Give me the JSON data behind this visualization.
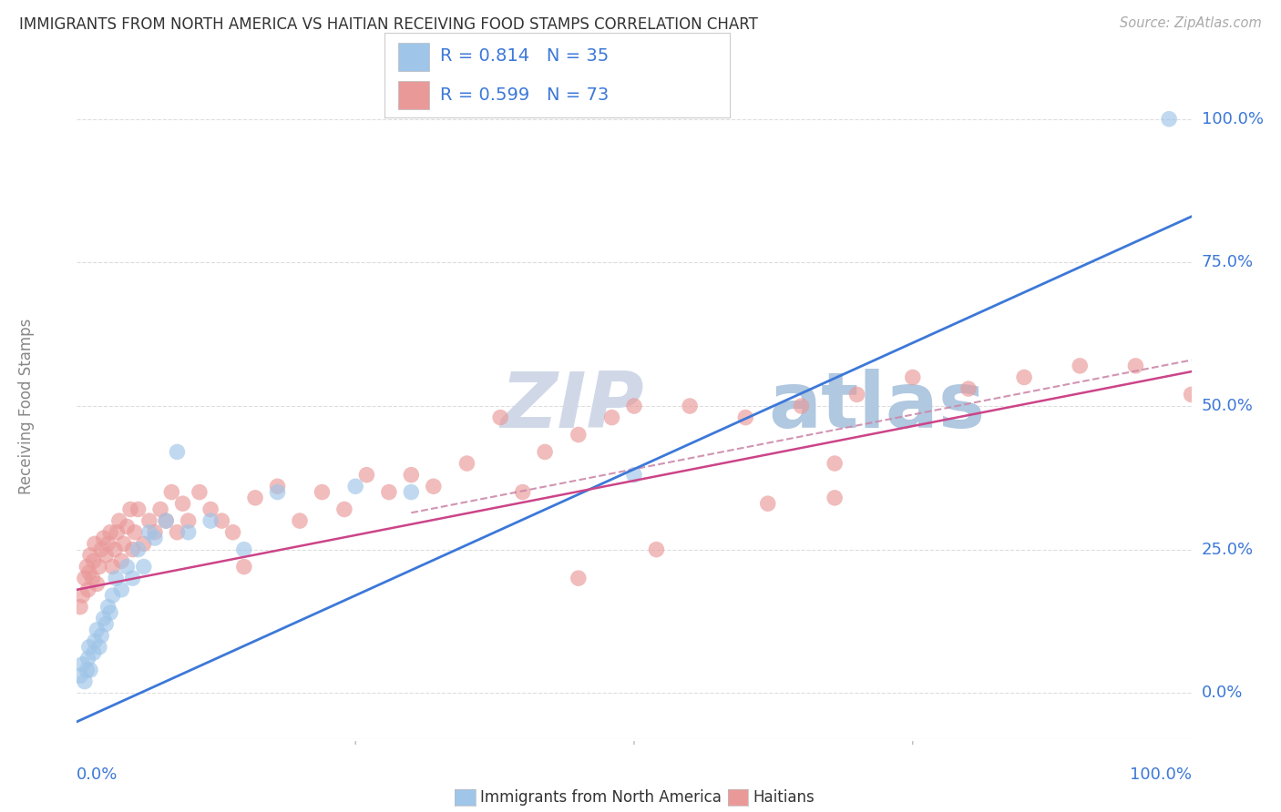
{
  "title": "IMMIGRANTS FROM NORTH AMERICA VS HAITIAN RECEIVING FOOD STAMPS CORRELATION CHART",
  "source": "Source: ZipAtlas.com",
  "ylabel": "Receiving Food Stamps",
  "blue_color": "#9FC5E8",
  "pink_color": "#EA9999",
  "blue_line_color": "#3C78D8",
  "pink_line_color": "#CC4488",
  "pink_dashed_color": "#CC88AA",
  "legend_text_color": "#3C78D8",
  "title_color": "#333333",
  "watermark_color_zip": "#C8D4E8",
  "watermark_color_atlas": "#A0C0E0",
  "grid_color": "#DDDDDD",
  "axis_label_color": "#3C78D8",
  "ylabel_color": "#888888",
  "R_blue": 0.814,
  "N_blue": 35,
  "R_pink": 0.599,
  "N_pink": 73,
  "blue_intercept": -5.0,
  "blue_slope": 0.88,
  "pink_intercept": 18.0,
  "pink_slope": 0.38,
  "pink_dashed_intercept": 20.0,
  "pink_dashed_slope": 0.38,
  "blue_scatter_x": [
    0.3,
    0.5,
    0.7,
    0.9,
    1.0,
    1.1,
    1.2,
    1.5,
    1.6,
    1.8,
    2.0,
    2.2,
    2.4,
    2.6,
    2.8,
    3.0,
    3.2,
    3.5,
    4.0,
    4.5,
    5.0,
    5.5,
    6.0,
    6.5,
    7.0,
    8.0,
    9.0,
    10.0,
    12.0,
    15.0,
    18.0,
    25.0,
    30.0,
    50.0,
    98.0
  ],
  "blue_scatter_y": [
    3,
    5,
    2,
    4,
    6,
    8,
    4,
    7,
    9,
    11,
    8,
    10,
    13,
    12,
    15,
    14,
    17,
    20,
    18,
    22,
    20,
    25,
    22,
    28,
    27,
    30,
    42,
    28,
    30,
    25,
    35,
    36,
    35,
    38,
    100
  ],
  "pink_scatter_x": [
    0.3,
    0.5,
    0.7,
    0.9,
    1.0,
    1.1,
    1.2,
    1.4,
    1.5,
    1.6,
    1.8,
    2.0,
    2.2,
    2.4,
    2.6,
    2.8,
    3.0,
    3.2,
    3.4,
    3.6,
    3.8,
    4.0,
    4.2,
    4.5,
    4.8,
    5.0,
    5.2,
    5.5,
    6.0,
    6.5,
    7.0,
    7.5,
    8.0,
    8.5,
    9.0,
    9.5,
    10.0,
    11.0,
    12.0,
    13.0,
    14.0,
    15.0,
    16.0,
    18.0,
    20.0,
    22.0,
    24.0,
    26.0,
    28.0,
    30.0,
    32.0,
    35.0,
    38.0,
    40.0,
    42.0,
    45.0,
    48.0,
    50.0,
    55.0,
    60.0,
    65.0,
    70.0,
    75.0,
    80.0,
    85.0,
    90.0,
    95.0,
    100.0,
    45.0,
    52.0,
    68.0,
    62.0,
    68.0
  ],
  "pink_scatter_y": [
    15,
    17,
    20,
    22,
    18,
    21,
    24,
    20,
    23,
    26,
    19,
    22,
    25,
    27,
    24,
    26,
    28,
    22,
    25,
    28,
    30,
    23,
    26,
    29,
    32,
    25,
    28,
    32,
    26,
    30,
    28,
    32,
    30,
    35,
    28,
    33,
    30,
    35,
    32,
    30,
    28,
    22,
    34,
    36,
    30,
    35,
    32,
    38,
    35,
    38,
    36,
    40,
    48,
    35,
    42,
    45,
    48,
    50,
    50,
    48,
    50,
    52,
    55,
    53,
    55,
    57,
    57,
    52,
    20,
    25,
    34,
    33,
    40
  ],
  "ytick_positions": [
    0,
    25,
    50,
    75,
    100
  ],
  "ytick_labels": [
    "0.0%",
    "25.0%",
    "50.0%",
    "75.0%",
    "100.0%"
  ],
  "xmin": 0,
  "xmax": 100,
  "ymin": -8,
  "ymax": 108
}
